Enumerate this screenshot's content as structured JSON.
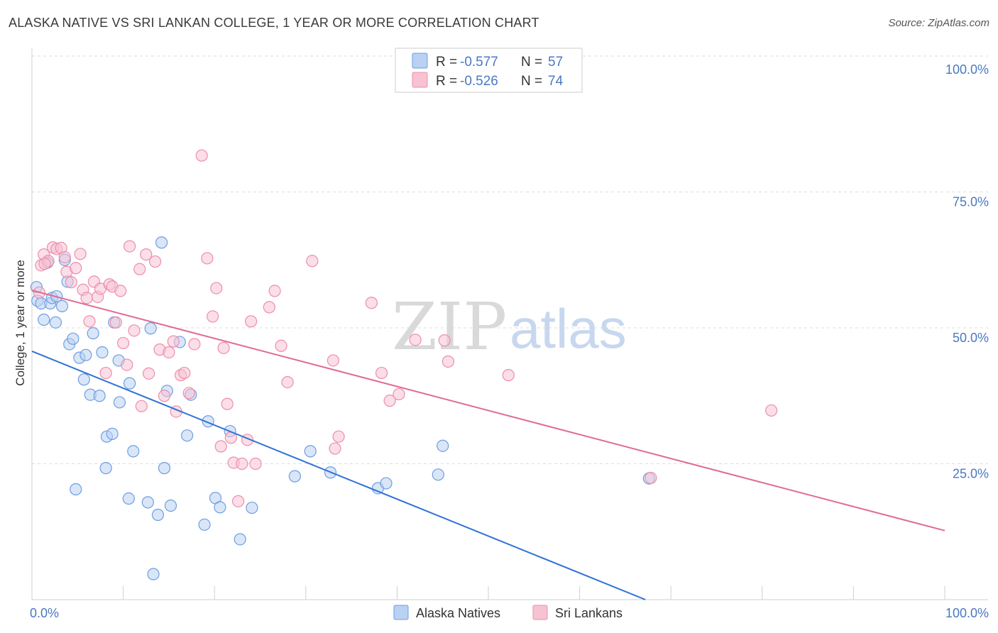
{
  "header": {
    "title": "ALASKA NATIVE VS SRI LANKAN COLLEGE, 1 YEAR OR MORE CORRELATION CHART",
    "source": "Source: ZipAtlas.com"
  },
  "watermark": {
    "zip": "ZIP",
    "atlas": "atlas"
  },
  "colors": {
    "blue_fill": "#b9d1f3",
    "blue_stroke": "#6f9ee0",
    "blue_line": "#2f72d6",
    "pink_fill": "#f7c3d3",
    "pink_stroke": "#ec8eab",
    "pink_line": "#e06a94",
    "grid": "#dddddd",
    "tick_text": "#4a78c2"
  },
  "legend": {
    "rows": [
      {
        "r_label": "R =",
        "r_value": "-0.577",
        "n_label": "N =",
        "n_value": "57",
        "color": "blue"
      },
      {
        "r_label": "R =",
        "r_value": "-0.526",
        "n_label": "N =",
        "n_value": "74",
        "color": "pink"
      }
    ]
  },
  "chart_data": {
    "type": "scatter",
    "title": "ALASKA NATIVE VS SRI LANKAN COLLEGE, 1 YEAR OR MORE CORRELATION CHART",
    "xlabel": "",
    "ylabel": "College, 1 year or more",
    "xlim": [
      0,
      100
    ],
    "ylim": [
      0,
      100
    ],
    "x_tick_labels": [
      "0.0%",
      "100.0%"
    ],
    "y_tick_labels": [
      {
        "value": 25,
        "label": "25.0%"
      },
      {
        "value": 50,
        "label": "50.0%"
      },
      {
        "value": 75,
        "label": "75.0%"
      },
      {
        "value": 100,
        "label": "100.0%"
      }
    ],
    "grid": true,
    "legend_position": "bottom-center",
    "series": [
      {
        "name": "Alaska Natives",
        "color": "blue",
        "trend": {
          "x": [
            0,
            67.2
          ],
          "y": [
            45.7,
            0
          ]
        },
        "points": [
          [
            0.5,
            57.5
          ],
          [
            0.6,
            55
          ],
          [
            1,
            54.5
          ],
          [
            1.3,
            51.5
          ],
          [
            1.7,
            62
          ],
          [
            2,
            54.5
          ],
          [
            2.2,
            55.5
          ],
          [
            2.6,
            51
          ],
          [
            2.7,
            55.8
          ],
          [
            3.3,
            54
          ],
          [
            3.6,
            62.5
          ],
          [
            3.9,
            58.5
          ],
          [
            4.1,
            47
          ],
          [
            4.5,
            48
          ],
          [
            4.8,
            20.3
          ],
          [
            5.2,
            44.5
          ],
          [
            5.7,
            40.5
          ],
          [
            5.9,
            45
          ],
          [
            6.4,
            37.7
          ],
          [
            6.7,
            49
          ],
          [
            7.4,
            37.5
          ],
          [
            7.7,
            45.5
          ],
          [
            8.1,
            24.2
          ],
          [
            8.2,
            30
          ],
          [
            8.8,
            30.5
          ],
          [
            9,
            51
          ],
          [
            9.5,
            44
          ],
          [
            9.6,
            36.3
          ],
          [
            10.6,
            18.6
          ],
          [
            10.7,
            39.8
          ],
          [
            11.1,
            27.3
          ],
          [
            12.7,
            17.9
          ],
          [
            13,
            49.9
          ],
          [
            13.8,
            15.6
          ],
          [
            14.2,
            65.7
          ],
          [
            14.5,
            24.2
          ],
          [
            14.8,
            38.4
          ],
          [
            15.2,
            17.3
          ],
          [
            16.2,
            47.4
          ],
          [
            17,
            30.2
          ],
          [
            17.4,
            37.7
          ],
          [
            18.9,
            13.8
          ],
          [
            19.3,
            32.8
          ],
          [
            20.1,
            18.7
          ],
          [
            20.6,
            17
          ],
          [
            21.7,
            31
          ],
          [
            22.8,
            11.1
          ],
          [
            24.1,
            16.9
          ],
          [
            13.3,
            4.7
          ],
          [
            28.8,
            22.7
          ],
          [
            30.5,
            27.3
          ],
          [
            32.7,
            23.4
          ],
          [
            37.9,
            20.5
          ],
          [
            38.8,
            21.4
          ],
          [
            44.5,
            23
          ],
          [
            45,
            28.3
          ],
          [
            67.6,
            22.3
          ]
        ]
      },
      {
        "name": "Sri Lankans",
        "color": "pink",
        "trend": {
          "x": [
            0,
            100
          ],
          "y": [
            56.9,
            12.7
          ]
        },
        "points": [
          [
            0.8,
            56.5
          ],
          [
            1,
            61.5
          ],
          [
            1.3,
            63.5
          ],
          [
            1.8,
            62.3
          ],
          [
            2.3,
            64.8
          ],
          [
            2.7,
            64.5
          ],
          [
            3.2,
            64.7
          ],
          [
            3.6,
            63
          ],
          [
            3.8,
            60.3
          ],
          [
            4.3,
            58.4
          ],
          [
            4.8,
            61
          ],
          [
            5.3,
            63.6
          ],
          [
            5.6,
            57
          ],
          [
            6,
            55.5
          ],
          [
            6.3,
            51.2
          ],
          [
            6.8,
            58.5
          ],
          [
            7.2,
            55.7
          ],
          [
            7.5,
            57.2
          ],
          [
            8.1,
            41.7
          ],
          [
            8.5,
            58
          ],
          [
            8.8,
            57.6
          ],
          [
            9.2,
            51
          ],
          [
            9.7,
            56.8
          ],
          [
            10,
            47.2
          ],
          [
            10.4,
            43.2
          ],
          [
            10.7,
            65
          ],
          [
            11.2,
            49.5
          ],
          [
            11.8,
            60.8
          ],
          [
            12,
            35.6
          ],
          [
            12.5,
            63.5
          ],
          [
            12.8,
            41.6
          ],
          [
            13.5,
            62.2
          ],
          [
            14,
            46
          ],
          [
            14.5,
            37.5
          ],
          [
            15,
            45.5
          ],
          [
            15.5,
            47.5
          ],
          [
            15.8,
            34.6
          ],
          [
            16.3,
            41.3
          ],
          [
            16.7,
            41.7
          ],
          [
            17.2,
            38
          ],
          [
            17.8,
            47
          ],
          [
            18.6,
            81.7
          ],
          [
            19.2,
            62.8
          ],
          [
            19.8,
            52.1
          ],
          [
            20.2,
            57.3
          ],
          [
            20.7,
            28.2
          ],
          [
            21,
            46.3
          ],
          [
            21.4,
            36
          ],
          [
            21.8,
            29.8
          ],
          [
            22.1,
            25.2
          ],
          [
            22.6,
            18.1
          ],
          [
            23,
            25
          ],
          [
            23.6,
            29.4
          ],
          [
            24,
            51.2
          ],
          [
            24.5,
            25
          ],
          [
            26,
            53.8
          ],
          [
            26.6,
            56.8
          ],
          [
            27.3,
            46.7
          ],
          [
            28,
            40
          ],
          [
            30.7,
            62.3
          ],
          [
            33,
            44
          ],
          [
            33.2,
            27.8
          ],
          [
            33.6,
            30
          ],
          [
            37.2,
            54.6
          ],
          [
            38.3,
            41.7
          ],
          [
            39.2,
            36.6
          ],
          [
            40.2,
            37.8
          ],
          [
            42,
            47.8
          ],
          [
            45.2,
            47.7
          ],
          [
            45.6,
            43.8
          ],
          [
            52.2,
            41.3
          ],
          [
            67.8,
            22.4
          ],
          [
            81,
            34.8
          ],
          [
            1.4,
            61.8
          ]
        ]
      }
    ]
  },
  "bottom_legend": {
    "items": [
      {
        "label": "Alaska Natives",
        "color": "blue"
      },
      {
        "label": "Sri Lankans",
        "color": "pink"
      }
    ]
  }
}
